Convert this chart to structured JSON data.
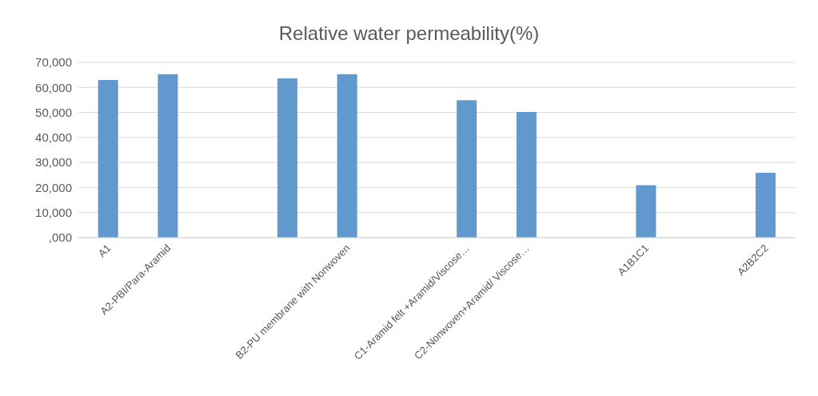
{
  "chart_data": {
    "type": "bar",
    "title": "Relative water permeability(%)",
    "categories": [
      "A1",
      "A2-PBI/Para-Aramid",
      null,
      null,
      "B2-PU membrane with Nonwoven",
      null,
      "C1-Aramid felt +Aramid/Viscose…",
      "C2-Nonwoven+Aramid/ Viscose…",
      null,
      "A1B1C1",
      null,
      "A2B2C2"
    ],
    "values": [
      63000,
      65300,
      null,
      63600,
      65300,
      null,
      54900,
      50200,
      null,
      20900,
      null,
      25900
    ],
    "color": "#6199cf",
    "ylim": [
      0,
      70000
    ],
    "yticks": [
      {
        "value": 0,
        "label": ",000"
      },
      {
        "value": 10000,
        "label": "10,000"
      },
      {
        "value": 20000,
        "label": "20,000"
      },
      {
        "value": 30000,
        "label": "30,000"
      },
      {
        "value": 40000,
        "label": "40,000"
      },
      {
        "value": 50000,
        "label": "50,000"
      },
      {
        "value": 60000,
        "label": "60,000"
      },
      {
        "value": 70000,
        "label": "70,000"
      }
    ],
    "grid": "y",
    "legend": false
  }
}
